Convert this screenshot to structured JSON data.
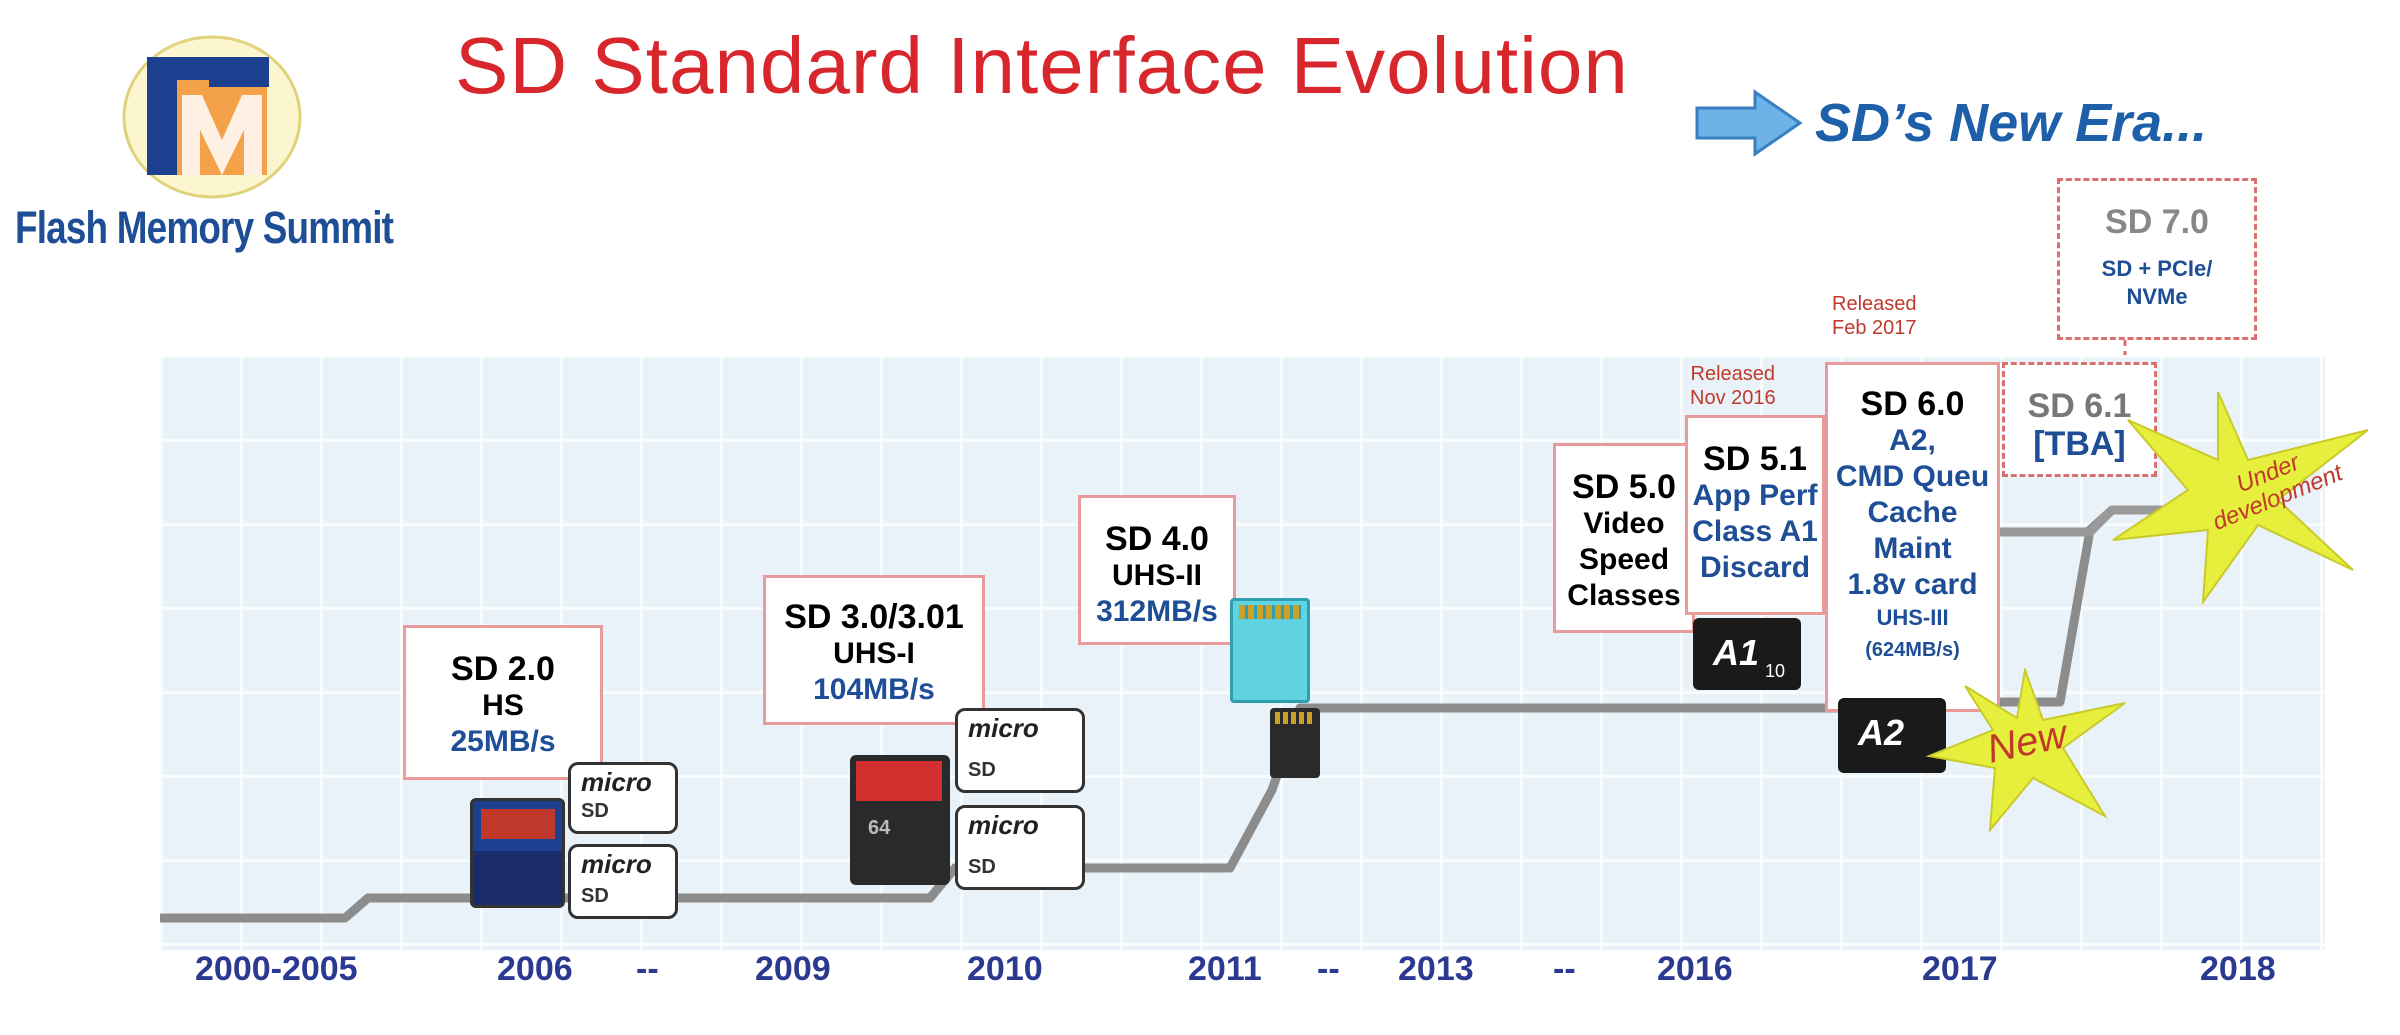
{
  "logo": {
    "org_name": "Flash Memory Summit",
    "mark_text": "FM"
  },
  "title": "SD Standard Interface Evolution",
  "new_era": "SD’s New Era...",
  "versions": {
    "sd20": {
      "name": "SD 2.0",
      "line1": "HS",
      "speed": "25MB/s"
    },
    "sd30": {
      "name": "SD 3.0/3.01",
      "line1": "UHS-I",
      "speed": "104MB/s"
    },
    "sd40": {
      "name": "SD 4.0",
      "line1": "UHS-II",
      "speed": "312MB/s"
    },
    "sd50": {
      "name": "SD 5.0",
      "lines": [
        "Video",
        "Speed",
        "Classes"
      ]
    },
    "sd51": {
      "name": "SD 5.1",
      "lines": [
        "App Perf",
        "Class A1",
        "Discard"
      ],
      "released": [
        "Released",
        "Nov 2016"
      ]
    },
    "sd60": {
      "name": "SD 6.0",
      "lines": [
        "A2,",
        "CMD Queu",
        "Cache",
        "Maint",
        "1.8v card"
      ],
      "sub": "UHS-III",
      "speed": "(624MB/s)",
      "released": [
        "Released",
        "Feb 2017"
      ]
    },
    "sd61": {
      "name": "SD 6.1",
      "line1": "[TBA]"
    },
    "sd70": {
      "name": "SD 7.0",
      "lines": [
        "SD + PCIe/",
        "NVMe"
      ]
    }
  },
  "stars": {
    "new": "New",
    "under_dev": "Under development"
  },
  "card_labels": {
    "micro": "micro",
    "sd": "SD",
    "a1": "A1",
    "a2": "A2",
    "c10": "10",
    "size64": "64"
  },
  "years": {
    "y2000": "2000-2005",
    "y2006": "2006",
    "dash1": "--",
    "y2009": "2009",
    "y2010": "2010",
    "y2011": "2011",
    "dash2": "--",
    "y2013": "2013",
    "dash3": "--",
    "y2016": "2016",
    "y2017": "2017",
    "y2018": "2018"
  },
  "colors": {
    "title": "#d8262d",
    "accent_blue": "#1e5faa",
    "box_border": "#e99a9a",
    "timeline": "#8a8a8a",
    "star_yellow": "#e6f03c"
  }
}
